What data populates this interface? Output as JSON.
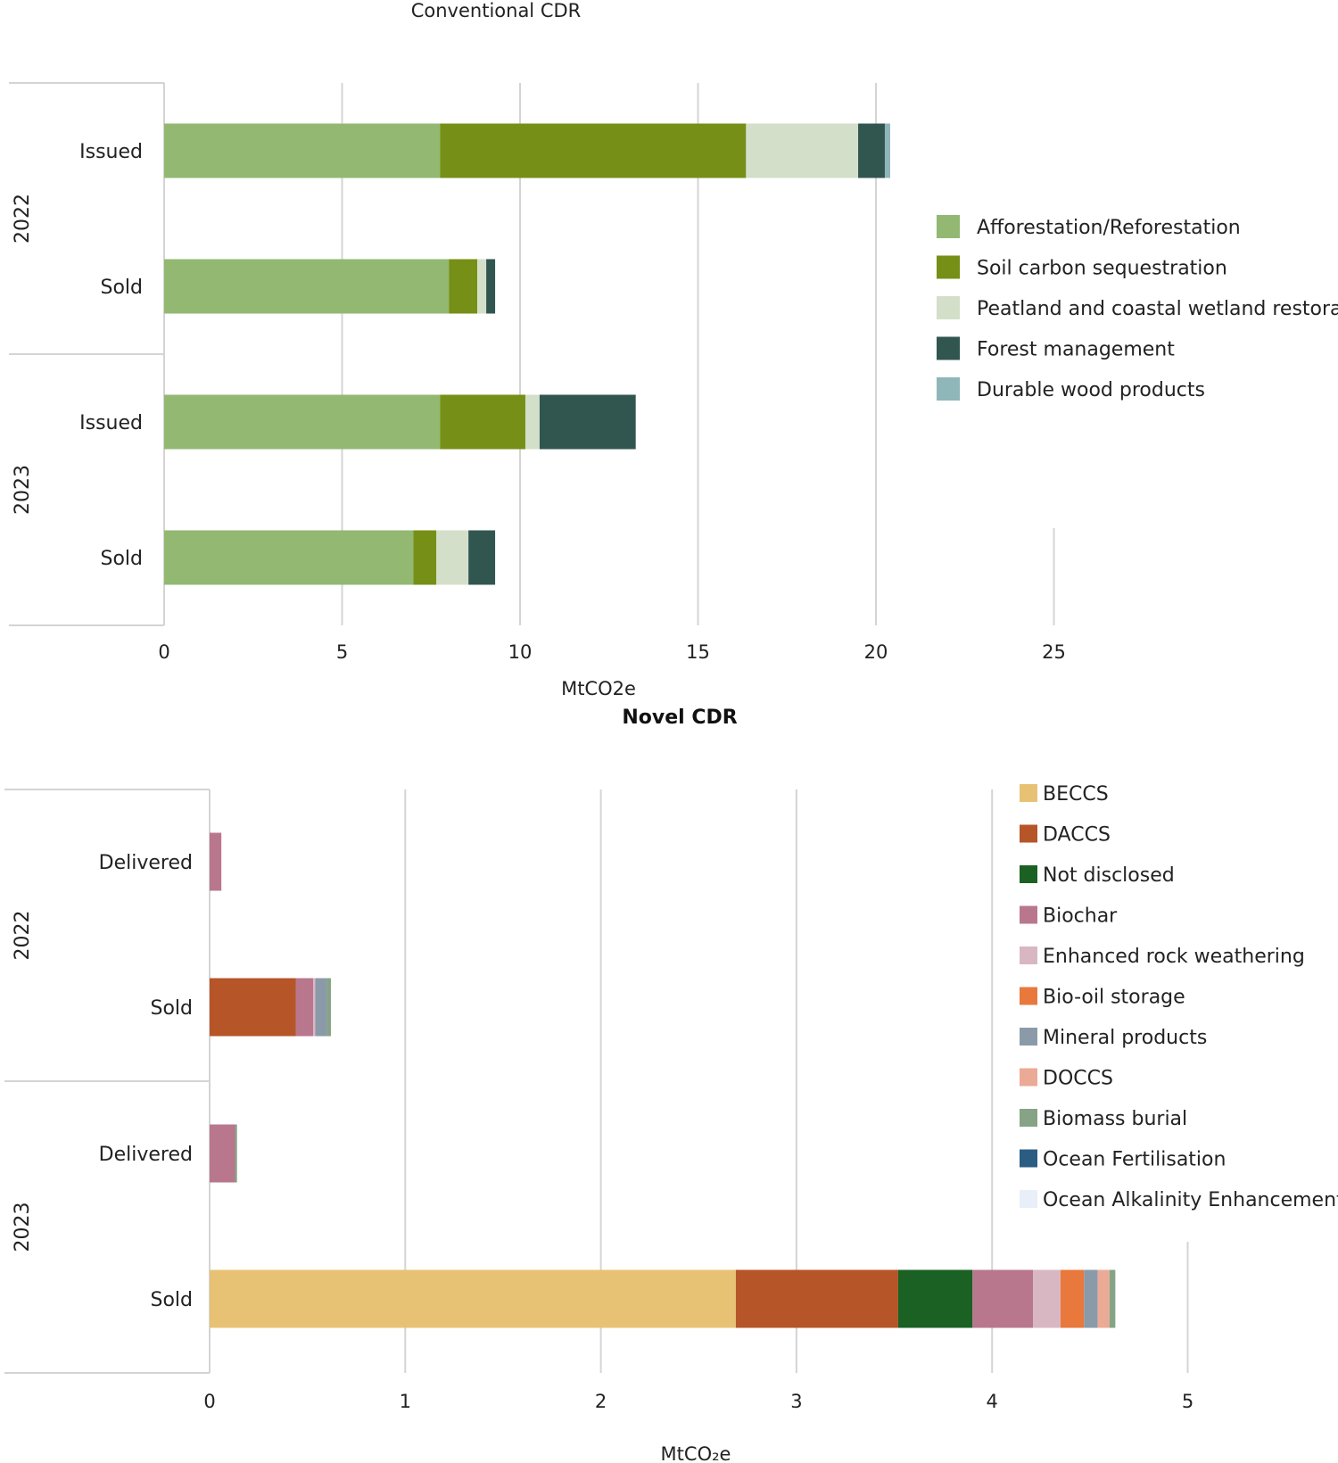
{
  "chart_data": [
    {
      "type": "bar",
      "orientation": "horizontal",
      "stacked": true,
      "title": "Conventional CDR",
      "xlabel": "MtCO2e",
      "xlim": [
        0,
        25
      ],
      "xticks": [
        "0",
        "5",
        "10",
        "15",
        "20",
        "25"
      ],
      "grid": true,
      "legend_position": "right",
      "groups": [
        {
          "year": "2022",
          "rows": [
            "Issued",
            "Sold"
          ]
        },
        {
          "year": "2023",
          "rows": [
            "Issued",
            "Sold"
          ]
        }
      ],
      "categories": [
        "2022 Issued",
        "2022 Sold",
        "2023 Issued",
        "2023 Sold"
      ],
      "series": [
        {
          "name": "Afforestation/Reforestation",
          "color": "#92b872",
          "values": [
            7.75,
            8.0,
            7.75,
            7.0
          ]
        },
        {
          "name": "Soil carbon sequestration",
          "color": "#768f16",
          "values": [
            8.6,
            0.8,
            2.4,
            0.65
          ]
        },
        {
          "name": "Peatland and coastal wetland restoration",
          "color": "#d4dfca",
          "values": [
            3.15,
            0.25,
            0.4,
            0.9
          ]
        },
        {
          "name": "Forest management",
          "color": "#315650",
          "values": [
            0.75,
            0.25,
            2.7,
            0.75
          ]
        },
        {
          "name": "Durable wood products",
          "color": "#8fb6b8",
          "values": [
            0.15,
            0.0,
            0.0,
            0.0
          ]
        }
      ]
    },
    {
      "type": "bar",
      "orientation": "horizontal",
      "stacked": true,
      "title": "Novel CDR",
      "xlabel": "MtCO₂e",
      "xlim": [
        0,
        5
      ],
      "xticks": [
        "0",
        "1",
        "2",
        "3",
        "4",
        "5"
      ],
      "grid": true,
      "legend_position": "right",
      "groups": [
        {
          "year": "2022",
          "rows": [
            "Delivered",
            "Sold"
          ]
        },
        {
          "year": "2023",
          "rows": [
            "Delivered",
            "Sold"
          ]
        }
      ],
      "categories": [
        "2022 Delivered",
        "2022 Sold",
        "2023 Delivered",
        "2023 Sold"
      ],
      "series": [
        {
          "name": "BECCS",
          "color": "#e8c274",
          "values": [
            0.0,
            0.0,
            0.0,
            2.69
          ]
        },
        {
          "name": "DACCS",
          "color": "#b55528",
          "values": [
            0.0,
            0.44,
            0.0,
            0.83
          ]
        },
        {
          "name": "Not disclosed",
          "color": "#1b6124",
          "values": [
            0.0,
            0.0,
            0.0,
            0.38
          ]
        },
        {
          "name": "Biochar",
          "color": "#b8778d",
          "values": [
            0.06,
            0.09,
            0.13,
            0.31
          ]
        },
        {
          "name": "Enhanced rock weathering",
          "color": "#d9b7c2",
          "values": [
            0.0,
            0.01,
            0.0,
            0.14
          ]
        },
        {
          "name": "Bio-oil storage",
          "color": "#e8783c",
          "values": [
            0.0,
            0.0,
            0.0,
            0.12
          ]
        },
        {
          "name": "Mineral products",
          "color": "#8a9aa8",
          "values": [
            0.0,
            0.06,
            0.0,
            0.07
          ]
        },
        {
          "name": "DOCCS",
          "color": "#ebaa96",
          "values": [
            0.0,
            0.0,
            0.0,
            0.06
          ]
        },
        {
          "name": "Biomass  burial",
          "color": "#86a385",
          "values": [
            0.0,
            0.02,
            0.01,
            0.03
          ]
        },
        {
          "name": "Ocean Fertilisation",
          "color": "#2b5c82",
          "values": [
            0.0,
            0.0,
            0.0,
            0.0
          ]
        },
        {
          "name": "Ocean Alkalinity Enhancement",
          "color": "#e9eff8",
          "values": [
            0.0,
            0.0,
            0.0,
            0.0
          ]
        }
      ]
    }
  ]
}
